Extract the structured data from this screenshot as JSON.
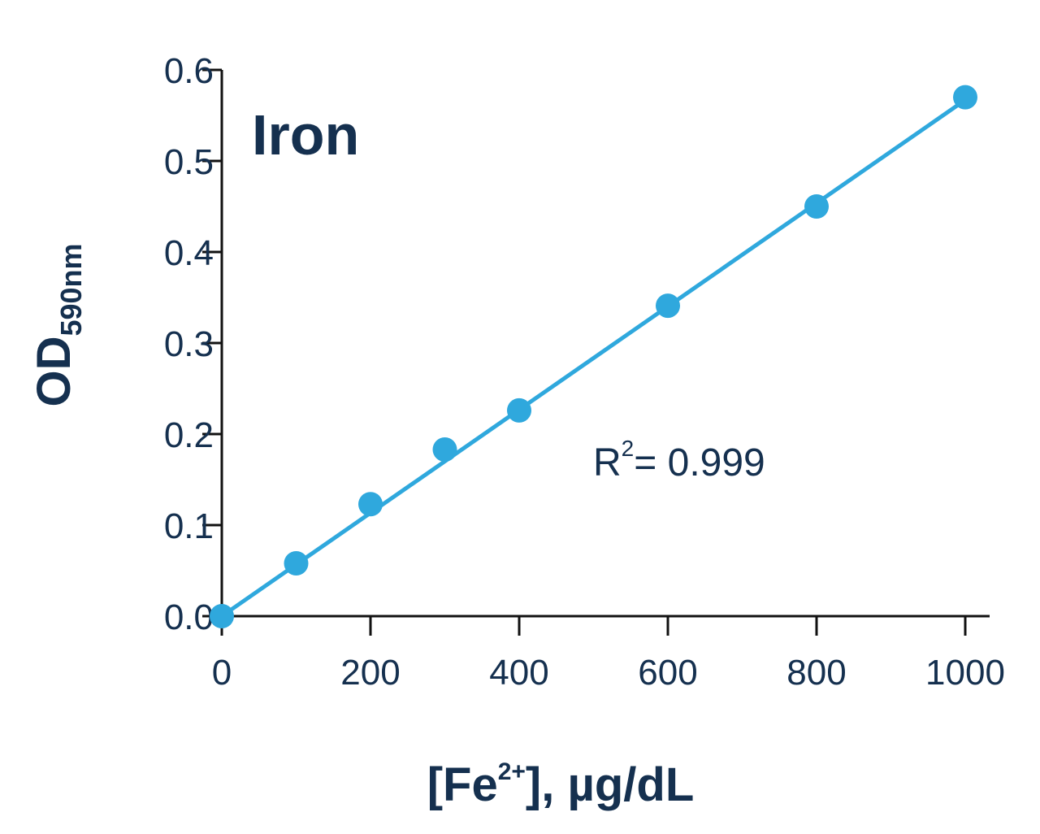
{
  "chart_data": {
    "type": "scatter",
    "title": "Iron",
    "xlabel": {
      "main": "[Fe",
      "sup": "2+",
      "rest": "], µg/dL"
    },
    "ylabel": {
      "main": "OD",
      "sub": "590nm"
    },
    "xlim": [
      0,
      1000
    ],
    "ylim": [
      0,
      0.6
    ],
    "x_ticks": [
      0,
      200,
      400,
      600,
      800,
      1000
    ],
    "x_tick_labels": [
      "0",
      "200",
      "400",
      "600",
      "800",
      "1000"
    ],
    "y_ticks": [
      0,
      0.1,
      0.2,
      0.3,
      0.4,
      0.5,
      0.6
    ],
    "y_tick_labels": [
      "0.0",
      "0.1",
      "0.2",
      "0.3",
      "0.4",
      "0.5",
      "0.6"
    ],
    "series": [
      {
        "x": [
          0,
          100,
          200,
          300,
          400,
          600,
          800,
          1000
        ],
        "y": [
          0.0,
          0.058,
          0.123,
          0.183,
          0.226,
          0.341,
          0.45,
          0.57
        ],
        "color": "#2fa8dd"
      }
    ],
    "fit_line": {
      "x": [
        0,
        1000
      ],
      "y": [
        0.0,
        0.567
      ],
      "color": "#2fa8dd"
    },
    "annotation": {
      "main": "R",
      "sup": "2",
      "rest": "= 0.999"
    },
    "grid": false,
    "legend": "none"
  }
}
